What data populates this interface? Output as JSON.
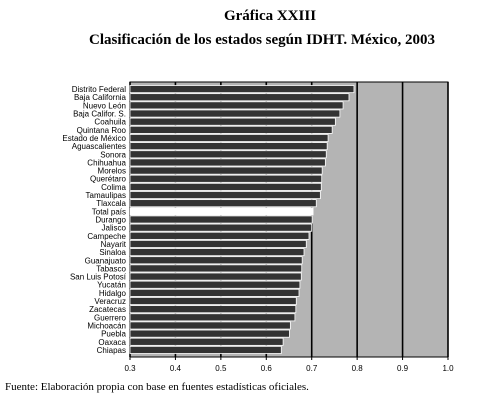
{
  "chart_data": {
    "type": "barh",
    "title": "Gráfica XXIII",
    "subtitle": "Clasificación de los estados según IDHT. México, 2003",
    "source": "Fuente: Elaboración propia con base en fuentes estadísticas oficiales.",
    "categories": [
      "Distrito Federal",
      "Baja California",
      "Nuevo León",
      "Baja Califor. S.",
      "Coahuila",
      "Quintana Roo",
      "Estado de México",
      "Aguascalientes",
      "Sonora",
      "Chihuahua",
      "Morelos",
      "Querétaro",
      "Colima",
      "Tamaulipas",
      "Tlaxcala",
      "Total país",
      "Durango",
      "Jalisco",
      "Campeche",
      "Nayarit",
      "Sinaloa",
      "Guanajuato",
      "Tabasco",
      "San Luis Potosí",
      "Yucatán",
      "Hidalgo",
      "Veracruz",
      "Zacatecas",
      "Guerrero",
      "Michoacán",
      "Puebla",
      "Oaxaca",
      "Chiapas"
    ],
    "values": [
      0.793,
      0.782,
      0.769,
      0.762,
      0.752,
      0.745,
      0.736,
      0.734,
      0.732,
      0.73,
      0.723,
      0.722,
      0.721,
      0.719,
      0.71,
      0.703,
      0.701,
      0.7,
      0.694,
      0.688,
      0.683,
      0.679,
      0.678,
      0.677,
      0.674,
      0.672,
      0.666,
      0.665,
      0.663,
      0.653,
      0.651,
      0.637,
      0.633
    ],
    "colors": [
      "#333",
      "#333",
      "#333",
      "#333",
      "#333",
      "#333",
      "#333",
      "#333",
      "#333",
      "#333",
      "#333",
      "#333",
      "#333",
      "#333",
      "#333",
      "#ffffff",
      "#333",
      "#333",
      "#333",
      "#333",
      "#333",
      "#333",
      "#333",
      "#333",
      "#333",
      "#333",
      "#333",
      "#333",
      "#333",
      "#333",
      "#333",
      "#333",
      "#333"
    ],
    "xlim": [
      0.3,
      1
    ],
    "xticks": [
      0.3,
      0.4,
      0.5,
      0.6,
      0.7,
      0.8,
      0.9,
      {
        "value": 1,
        "label": "1.0"
      }
    ],
    "grid": true,
    "background": "#b4b4b4"
  }
}
